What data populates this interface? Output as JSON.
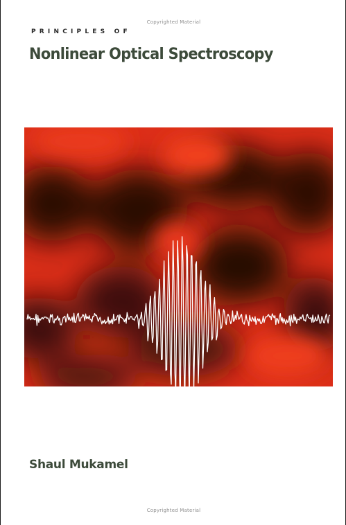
{
  "cover": {
    "watermark_top": "Copyrighted Material",
    "series_title": "PRINCIPLES OF",
    "title": "Nonlinear Optical Spectroscopy",
    "author": "Shaul Mukamel",
    "watermark_bottom": "Copyrighted Material"
  },
  "colors": {
    "background": "#ffffff",
    "art_red": "#e0301a",
    "art_dark": "#2a0c06",
    "signal": "#ffffff",
    "title_text": "#3c4a3a"
  },
  "art": {
    "description_icon": "interferogram-signal-icon"
  }
}
